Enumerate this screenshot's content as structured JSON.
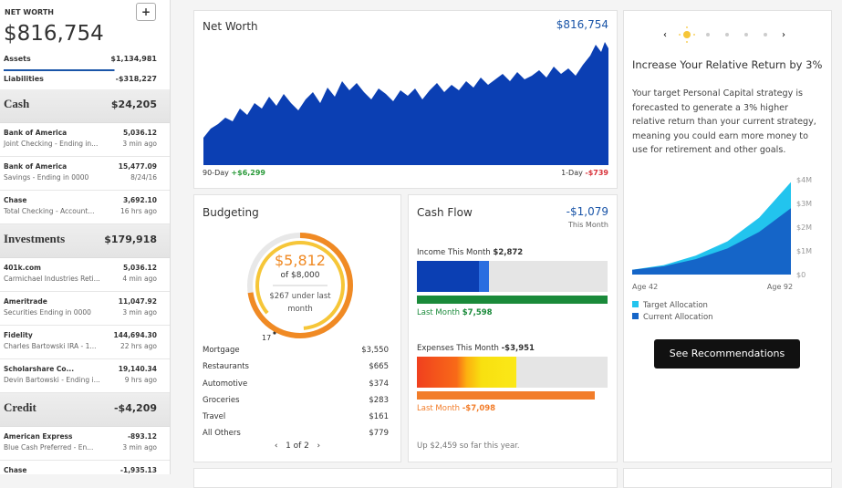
{
  "sidebar": {
    "title": "NET WORTH",
    "add_button": "+",
    "net_worth": "$816,754",
    "summary": [
      {
        "label": "Assets",
        "value": "$1,134,981"
      },
      {
        "label": "Liabilities",
        "value": "-$318,227"
      }
    ],
    "groups": [
      {
        "name": "Cash",
        "total": "$24,205",
        "accounts": [
          {
            "name": "Bank of America",
            "detail": "Joint Checking - Ending in...",
            "balance": "5,036.12",
            "updated": "3 min ago"
          },
          {
            "name": "Bank of America",
            "detail": "Savings - Ending in 0000",
            "balance": "15,477.09",
            "updated": "8/24/16"
          },
          {
            "name": "Chase",
            "detail": "Total Checking - Account...",
            "balance": "3,692.10",
            "updated": "16 hrs ago"
          }
        ]
      },
      {
        "name": "Investments",
        "total": "$179,918",
        "accounts": [
          {
            "name": "401k.com",
            "detail": "Carmichael Industries Reti...",
            "balance": "5,036.12",
            "updated": "4 min ago"
          },
          {
            "name": "Ameritrade",
            "detail": "Securities Ending in 0000",
            "balance": "11,047.92",
            "updated": "3 min ago"
          },
          {
            "name": "Fidelity",
            "detail": "Charles Bartowski IRA - 1...",
            "balance": "144,694.30",
            "updated": "22 hrs ago"
          },
          {
            "name": "Scholarshare Co...",
            "detail": "Devin Bartowski - Ending i...",
            "balance": "19,140.34",
            "updated": "9 hrs ago"
          }
        ]
      },
      {
        "name": "Credit",
        "total": "-$4,209",
        "accounts": [
          {
            "name": "American Express",
            "detail": "Blue Cash Preferred - En...",
            "balance": "-893.12",
            "updated": "3 min ago"
          },
          {
            "name": "Chase",
            "balance": "-1,935.13"
          }
        ]
      }
    ]
  },
  "net_worth_panel": {
    "title": "Net Worth",
    "value": "$816,754",
    "left_label": "90-Day",
    "left_value": "+$6,299",
    "right_label": "1-Day",
    "right_value": "-$739"
  },
  "budgeting": {
    "title": "Budgeting",
    "spent": {
      "value": 5812,
      "label": "$5,812"
    },
    "budget": {
      "value": 8000,
      "label": "of $8,000"
    },
    "note": "$267 under last month",
    "day_marker": "17",
    "categories": [
      {
        "name": "Mortgage",
        "amount": "$3,550"
      },
      {
        "name": "Restaurants",
        "amount": "$665"
      },
      {
        "name": "Automotive",
        "amount": "$374"
      },
      {
        "name": "Groceries",
        "amount": "$283"
      },
      {
        "name": "Travel",
        "amount": "$161"
      },
      {
        "name": "All Others",
        "amount": "$779"
      }
    ],
    "pager": "1 of 2"
  },
  "cash_flow": {
    "title": "Cash Flow",
    "net": "-$1,079",
    "net_caption": "This Month",
    "income": {
      "label": "Income This Month",
      "value": 2872,
      "value_label": "$2,872"
    },
    "income_last": {
      "label": "Last Month",
      "value": 7598,
      "value_label": "$7,598"
    },
    "expenses": {
      "label": "Expenses This Month",
      "value": -3951,
      "value_label": "-$3,951"
    },
    "expenses_last": {
      "label": "Last Month",
      "value": -7098,
      "value_label": "-$7,098"
    },
    "footer": "Up $2,459 so far this year."
  },
  "recommendation": {
    "title": "Increase Your Relative Return by 3%",
    "body": "Your target Personal Capital strategy is forecasted to generate a 3% higher relative return than your current strategy, meaning you could earn more money to use for retirement and other goals.",
    "button": "See Recommendations"
  },
  "chart_data": {
    "type": "area",
    "x": [
      42,
      52,
      62,
      72,
      82,
      92
    ],
    "xlim": [
      42,
      92
    ],
    "xticks": [
      {
        "value": 42,
        "label": "Age 42"
      },
      {
        "value": 92,
        "label": "Age 92"
      }
    ],
    "ylim": [
      0,
      4000000
    ],
    "yticks": [
      {
        "value": 0,
        "label": "$0"
      },
      {
        "value": 1000000,
        "label": "$1M"
      },
      {
        "value": 2000000,
        "label": "$2M"
      },
      {
        "value": 3000000,
        "label": "$3M"
      },
      {
        "value": 4000000,
        "label": "$4M"
      }
    ],
    "series": [
      {
        "name": "Target Allocation",
        "color": "#22c4ee",
        "values": [
          200000,
          400000,
          800000,
          1400000,
          2400000,
          3900000
        ]
      },
      {
        "name": "Current Allocation",
        "color": "#1565c8",
        "values": [
          200000,
          350000,
          650000,
          1100000,
          1800000,
          2800000
        ]
      }
    ]
  }
}
